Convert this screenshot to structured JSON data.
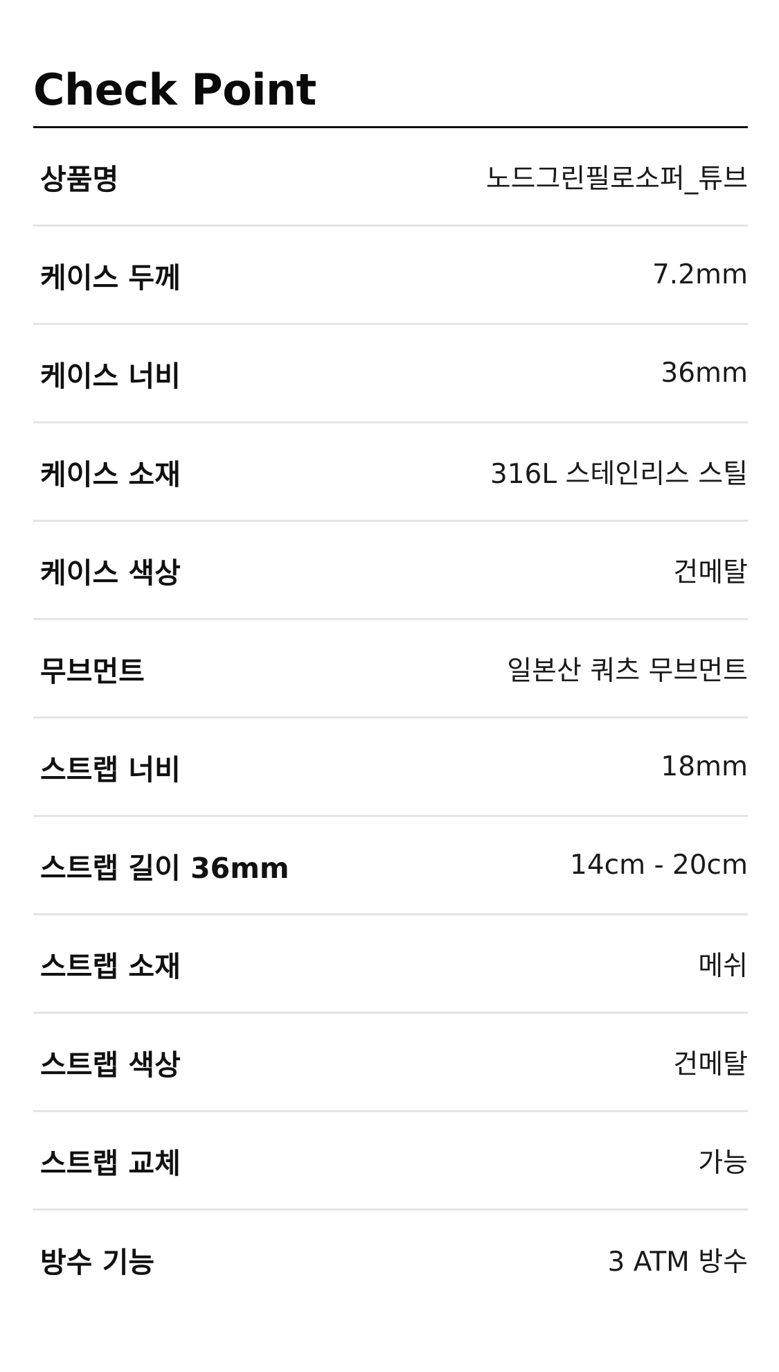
{
  "header": {
    "title": "Check Point"
  },
  "specs": [
    {
      "label": "상품명",
      "value": "노드그린필로소퍼_튜브"
    },
    {
      "label": "케이스 두께",
      "value": "7.2mm"
    },
    {
      "label": "케이스 너비",
      "value": "36mm"
    },
    {
      "label": "케이스 소재",
      "value": "316L 스테인리스 스틸"
    },
    {
      "label": "케이스 색상",
      "value": "건메탈"
    },
    {
      "label": "무브먼트",
      "value": "일본산 쿼츠 무브먼트"
    },
    {
      "label": "스트랩 너비",
      "value": "18mm"
    },
    {
      "label": "스트랩 길이 36mm",
      "value": "14cm - 20cm"
    },
    {
      "label": "스트랩 소재",
      "value": "메쉬"
    },
    {
      "label": "스트랩 색상",
      "value": "건메탈"
    },
    {
      "label": "스트랩 교체",
      "value": "가능"
    },
    {
      "label": "방수 기능",
      "value": "3 ATM 방수"
    }
  ]
}
